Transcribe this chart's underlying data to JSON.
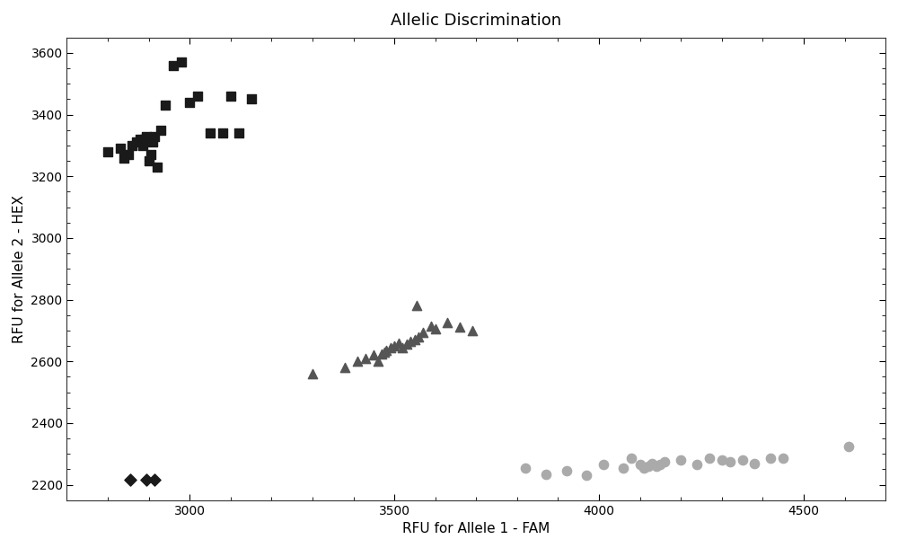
{
  "title": "Allelic Discrimination",
  "xlabel": "RFU for Allele 1 - FAM",
  "ylabel": "RFU for Allele 2 - HEX",
  "xlim": [
    2700,
    4700
  ],
  "ylim": [
    2150,
    3650
  ],
  "xticks": [
    3000,
    3500,
    4000,
    4500
  ],
  "yticks": [
    2200,
    2400,
    2600,
    2800,
    3000,
    3200,
    3400,
    3600
  ],
  "squares": {
    "x": [
      2800,
      2830,
      2840,
      2850,
      2860,
      2870,
      2880,
      2885,
      2890,
      2895,
      2900,
      2905,
      2910,
      2915,
      2920,
      2930,
      2940,
      2960,
      2980,
      3000,
      3020,
      3050,
      3080,
      3100,
      3120,
      3150
    ],
    "y": [
      3280,
      3290,
      3260,
      3270,
      3300,
      3310,
      3320,
      3300,
      3320,
      3330,
      3250,
      3270,
      3310,
      3330,
      3230,
      3350,
      3430,
      3560,
      3570,
      3440,
      3460,
      3340,
      3340,
      3460,
      3340,
      3450
    ],
    "color": "#1a1a1a",
    "marker": "s",
    "size": 55
  },
  "triangles": {
    "x": [
      3300,
      3380,
      3410,
      3430,
      3450,
      3460,
      3470,
      3475,
      3480,
      3490,
      3500,
      3510,
      3520,
      3530,
      3540,
      3550,
      3555,
      3560,
      3570,
      3590,
      3600,
      3630,
      3660,
      3690
    ],
    "y": [
      2560,
      2580,
      2600,
      2610,
      2620,
      2600,
      2625,
      2630,
      2635,
      2645,
      2650,
      2660,
      2645,
      2655,
      2665,
      2670,
      2780,
      2680,
      2695,
      2715,
      2705,
      2725,
      2710,
      2700
    ],
    "color": "#555555",
    "marker": "^",
    "size": 55
  },
  "circles": {
    "x": [
      3820,
      3870,
      3920,
      3970,
      4010,
      4060,
      4080,
      4100,
      4110,
      4120,
      4130,
      4140,
      4150,
      4160,
      4200,
      4240,
      4270,
      4300,
      4320,
      4350,
      4380,
      4420,
      4450,
      4610
    ],
    "y": [
      2255,
      2235,
      2245,
      2230,
      2265,
      2255,
      2285,
      2265,
      2255,
      2260,
      2270,
      2260,
      2265,
      2275,
      2280,
      2265,
      2285,
      2280,
      2275,
      2280,
      2270,
      2285,
      2285,
      2325
    ],
    "color": "#aaaaaa",
    "marker": "o",
    "size": 55
  },
  "diamonds": {
    "x": [
      2855,
      2895,
      2915
    ],
    "y": [
      2215,
      2215,
      2215
    ],
    "color": "#1a1a1a",
    "marker": "D",
    "size": 45
  },
  "bg_color": "#ffffff",
  "title_fontsize": 13,
  "label_fontsize": 11
}
